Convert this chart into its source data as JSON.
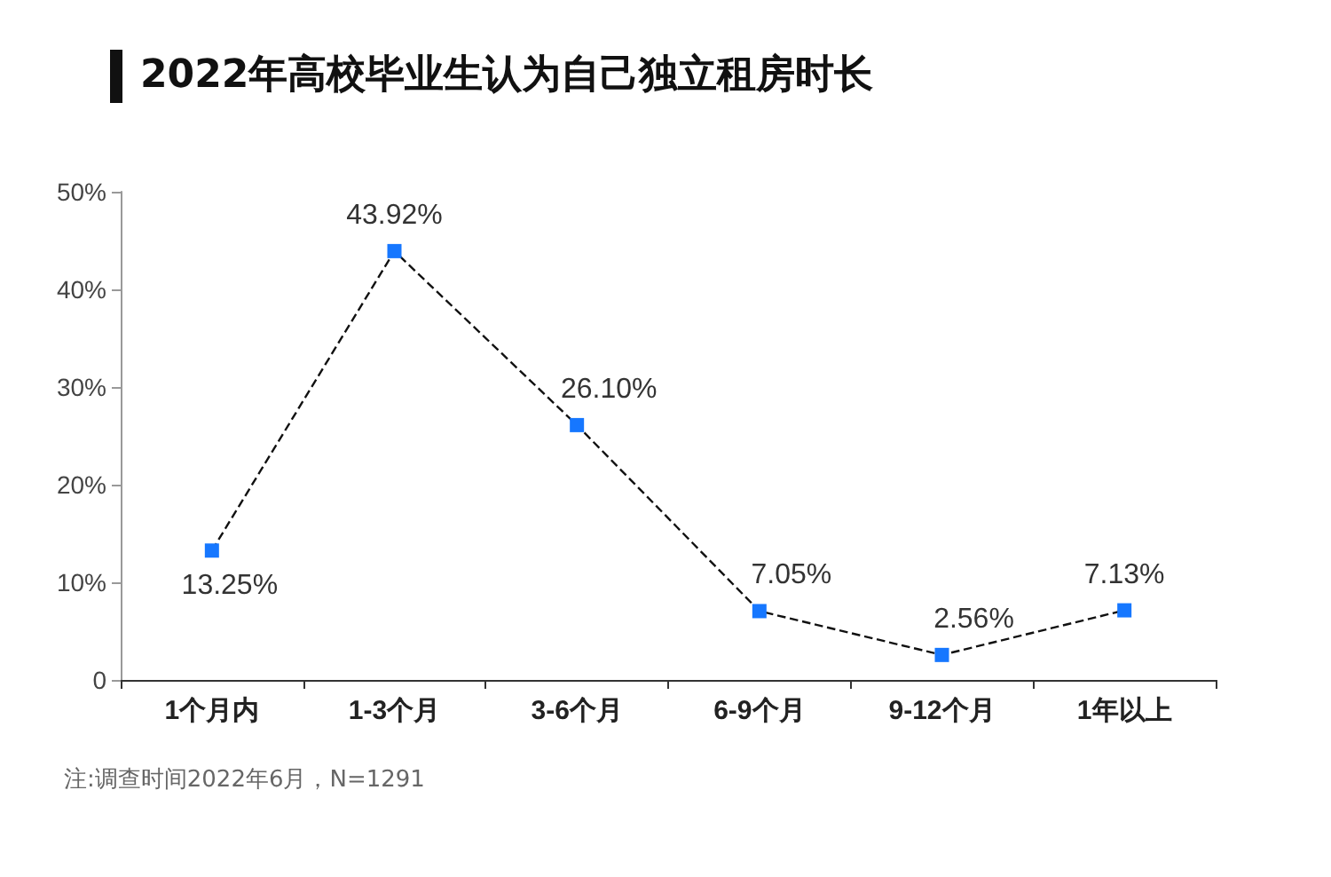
{
  "chart_data": {
    "type": "line",
    "title": "2022年高校毕业生认为自己独立租房时长",
    "categories": [
      "1个月内",
      "1-3个月",
      "3-6个月",
      "6-9个月",
      "9-12个月",
      "1年以上"
    ],
    "series": [
      {
        "color": "#1677ff",
        "values": [
          13.25,
          43.92,
          26.1,
          7.05,
          2.56,
          7.13
        ],
        "value_labels": [
          "13.25%",
          "43.92%",
          "26.10%",
          "7.05%",
          "2.56%",
          "7.13%"
        ]
      }
    ],
    "ylim": [
      0,
      50
    ],
    "yticks": [
      0,
      {
        "value": 10,
        "label": "10%"
      },
      {
        "value": 20,
        "label": "20%"
      },
      {
        "value": 30,
        "label": "30%"
      },
      {
        "value": 40,
        "label": "40%"
      },
      {
        "value": 50,
        "label": "50%"
      }
    ],
    "grid": false,
    "marker": "square",
    "line_style": "dashed",
    "annotations": [
      "注:调查时间2022年6月，N=1291"
    ]
  }
}
